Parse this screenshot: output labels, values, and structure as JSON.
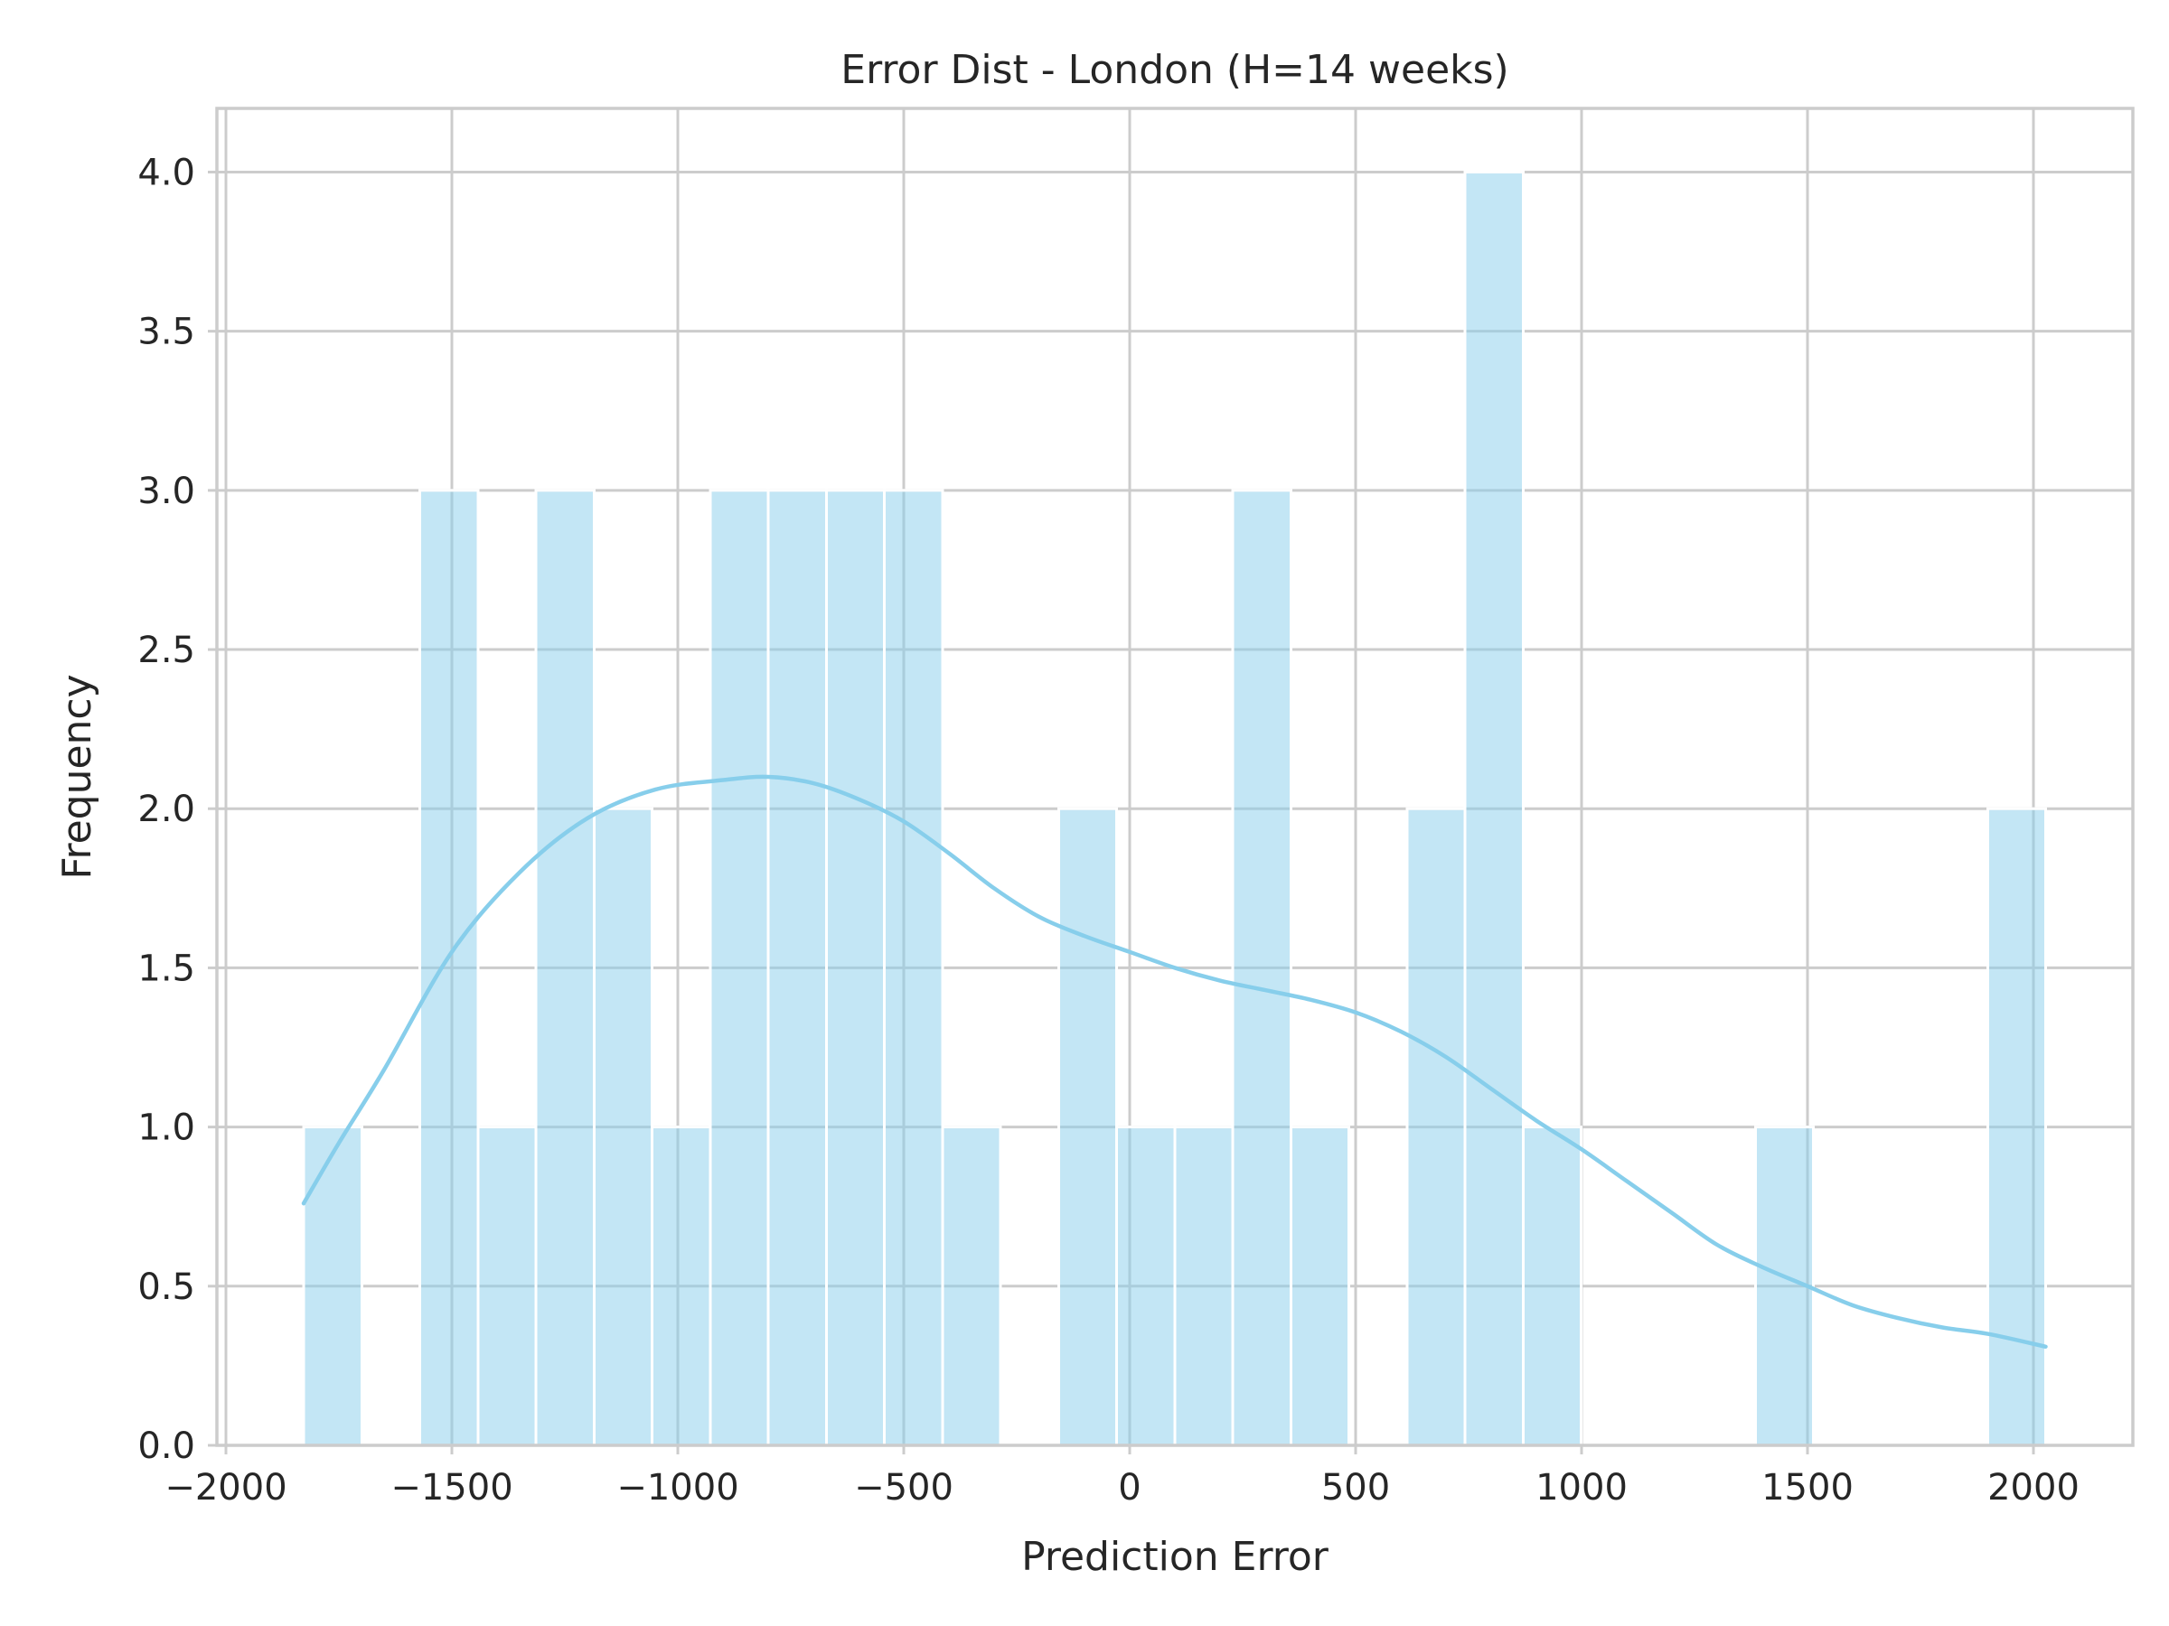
{
  "chart_data": {
    "type": "bar",
    "title": "Error Dist - London (H=14 weeks)",
    "xlabel": "Prediction Error",
    "ylabel": "Frequency",
    "xlim": [
      -2020,
      2220
    ],
    "ylim": [
      0,
      4.2
    ],
    "x_ticks": [
      -2000,
      -1500,
      -1000,
      -500,
      0,
      500,
      1000,
      1500,
      2000
    ],
    "x_tick_labels": [
      "−2000",
      "−1500",
      "−1000",
      "−500",
      "0",
      "500",
      "1000",
      "1500",
      "2000"
    ],
    "y_ticks": [
      0.0,
      0.5,
      1.0,
      1.5,
      2.0,
      2.5,
      3.0,
      3.5,
      4.0
    ],
    "y_tick_labels": [
      "0.0",
      "0.5",
      "1.0",
      "1.5",
      "2.0",
      "2.5",
      "3.0",
      "3.5",
      "4.0"
    ],
    "grid": true,
    "colors": {
      "bar": "#87CEEB",
      "kde": "#87CEEB",
      "grid": "#cccccc",
      "text": "#262626"
    },
    "bins": [
      {
        "x0": -1828,
        "x1": -1699,
        "count": 1
      },
      {
        "x0": -1699,
        "x1": -1571,
        "count": 0
      },
      {
        "x0": -1571,
        "x1": -1442,
        "count": 3
      },
      {
        "x0": -1442,
        "x1": -1314,
        "count": 1
      },
      {
        "x0": -1314,
        "x1": -1185,
        "count": 3
      },
      {
        "x0": -1185,
        "x1": -1057,
        "count": 2
      },
      {
        "x0": -1057,
        "x1": -928,
        "count": 1
      },
      {
        "x0": -928,
        "x1": -800,
        "count": 3
      },
      {
        "x0": -800,
        "x1": -671,
        "count": 3
      },
      {
        "x0": -671,
        "x1": -543,
        "count": 3
      },
      {
        "x0": -543,
        "x1": -414,
        "count": 3
      },
      {
        "x0": -414,
        "x1": -286,
        "count": 1
      },
      {
        "x0": -286,
        "x1": -157,
        "count": 0
      },
      {
        "x0": -157,
        "x1": -29,
        "count": 2
      },
      {
        "x0": -29,
        "x1": 100,
        "count": 1
      },
      {
        "x0": 100,
        "x1": 228,
        "count": 1
      },
      {
        "x0": 228,
        "x1": 357,
        "count": 3
      },
      {
        "x0": 357,
        "x1": 485,
        "count": 1
      },
      {
        "x0": 485,
        "x1": 614,
        "count": 0
      },
      {
        "x0": 614,
        "x1": 742,
        "count": 2
      },
      {
        "x0": 742,
        "x1": 871,
        "count": 4
      },
      {
        "x0": 871,
        "x1": 999,
        "count": 1
      },
      {
        "x0": 999,
        "x1": 1128,
        "count": 0
      },
      {
        "x0": 1128,
        "x1": 1256,
        "count": 0
      },
      {
        "x0": 1256,
        "x1": 1385,
        "count": 0
      },
      {
        "x0": 1385,
        "x1": 1513,
        "count": 1
      },
      {
        "x0": 1513,
        "x1": 1642,
        "count": 0
      },
      {
        "x0": 1642,
        "x1": 1770,
        "count": 0
      },
      {
        "x0": 1770,
        "x1": 1899,
        "count": 0
      },
      {
        "x0": 1899,
        "x1": 2027,
        "count": 2
      }
    ],
    "kde": {
      "x": [
        -1828,
        -1750,
        -1650,
        -1500,
        -1350,
        -1200,
        -1050,
        -900,
        -800,
        -700,
        -600,
        -500,
        -400,
        -300,
        -200,
        -100,
        0,
        100,
        200,
        300,
        400,
        500,
        600,
        700,
        800,
        900,
        1000,
        1100,
        1200,
        1300,
        1400,
        1500,
        1600,
        1700,
        1800,
        1900,
        2027
      ],
      "y": [
        0.76,
        0.95,
        1.18,
        1.55,
        1.8,
        1.97,
        2.06,
        2.09,
        2.1,
        2.08,
        2.03,
        1.96,
        1.86,
        1.75,
        1.66,
        1.6,
        1.55,
        1.5,
        1.46,
        1.43,
        1.4,
        1.36,
        1.3,
        1.22,
        1.12,
        1.02,
        0.93,
        0.83,
        0.73,
        0.63,
        0.56,
        0.5,
        0.44,
        0.4,
        0.37,
        0.35,
        0.31
      ]
    }
  }
}
